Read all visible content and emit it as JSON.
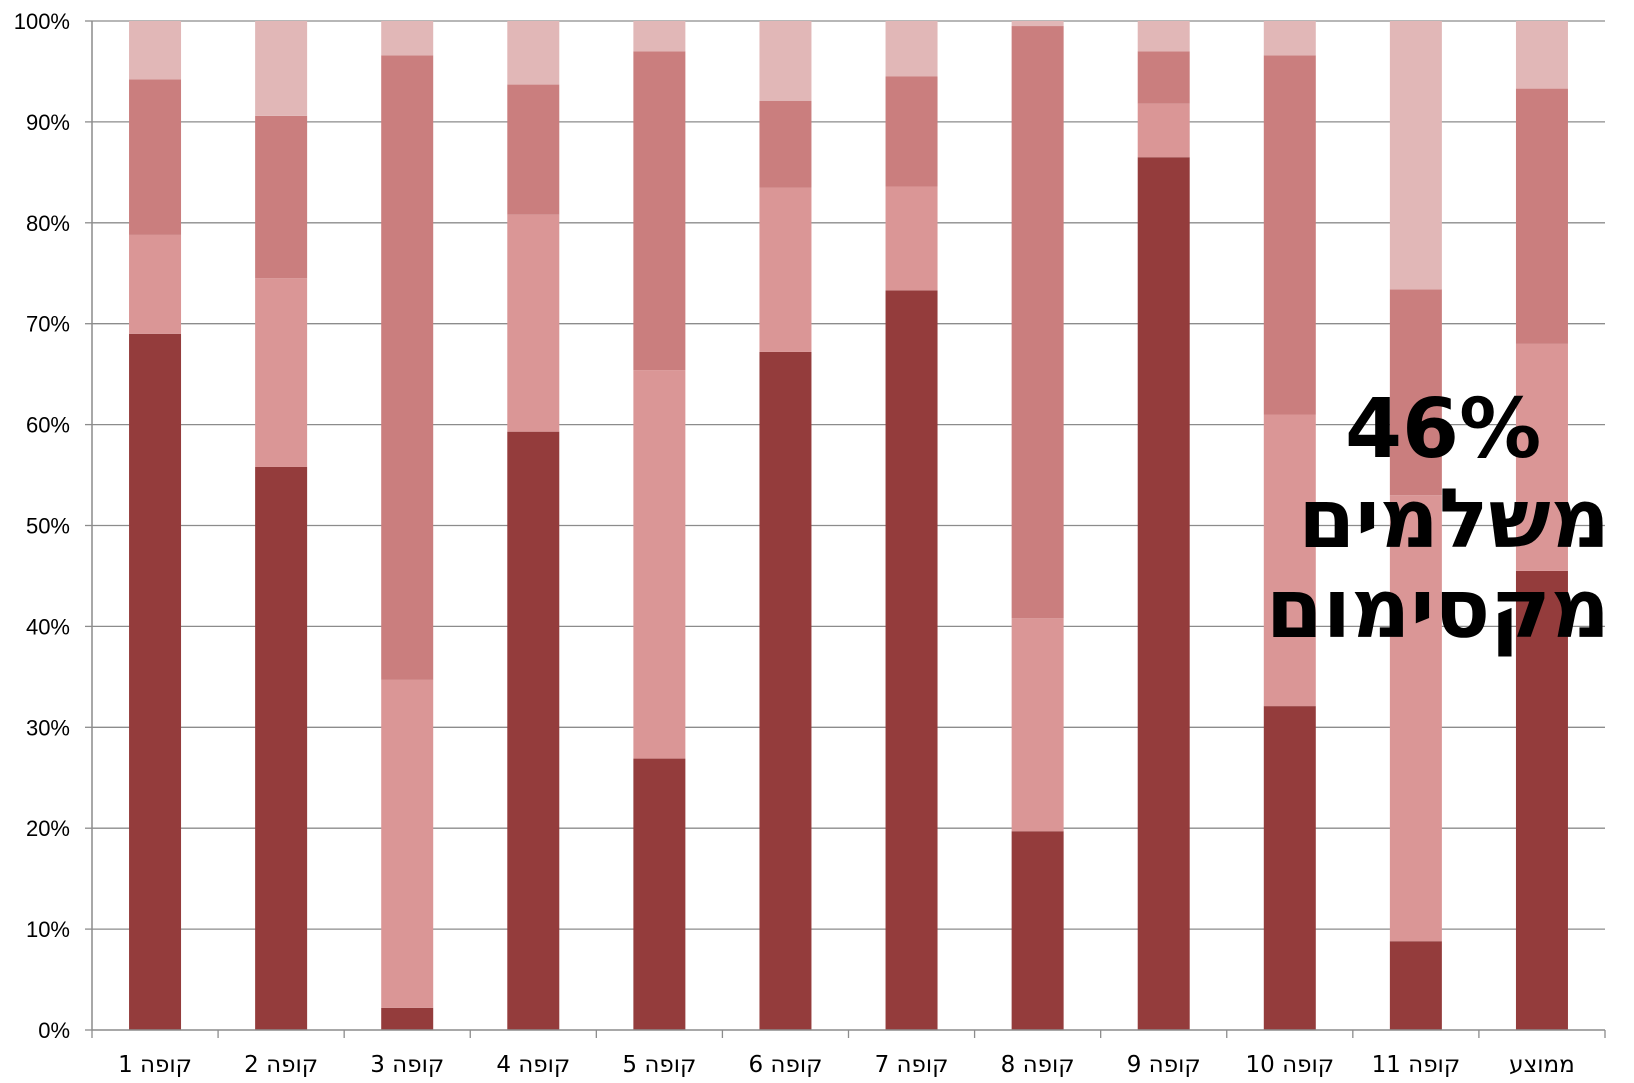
{
  "chart_data": {
    "type": "bar",
    "stacked": true,
    "percent_stacked": true,
    "categories": [
      "קופה 1",
      "קופה 2",
      "קופה 3",
      "קופה 4",
      "קופה 5",
      "קופה 6",
      "קופה 7",
      "קופה 8",
      "קופה 9",
      "קופה 10",
      "קופה 11",
      "ממוצע"
    ],
    "series": [
      {
        "values": [
          69.0,
          55.8,
          2.2,
          59.3,
          26.9,
          67.2,
          73.3,
          19.7,
          86.5,
          32.1,
          8.8,
          45.5
        ],
        "color": "#943c3c"
      },
      {
        "values": [
          9.8,
          18.7,
          32.5,
          21.5,
          38.5,
          16.3,
          10.3,
          21.1,
          5.3,
          28.9,
          44.2,
          22.5
        ],
        "color": "#da9696"
      },
      {
        "values": [
          15.4,
          16.1,
          61.9,
          12.9,
          31.6,
          8.6,
          10.9,
          58.7,
          5.2,
          35.6,
          20.4,
          25.3
        ],
        "color": "#ca7e7e"
      },
      {
        "values": [
          5.8,
          9.4,
          3.4,
          6.3,
          3.0,
          7.9,
          5.5,
          0.5,
          3.0,
          3.4,
          26.6,
          6.7
        ],
        "color": "#e1b7b7"
      }
    ],
    "ylim": [
      0,
      100
    ],
    "yticks": [
      "0%",
      "10%",
      "20%",
      "30%",
      "40%",
      "50%",
      "60%",
      "70%",
      "80%",
      "90%",
      "100%"
    ],
    "grid": true,
    "annotation": {
      "line1": "46%",
      "line2": "משלמים",
      "line3": "מקסימום"
    }
  }
}
